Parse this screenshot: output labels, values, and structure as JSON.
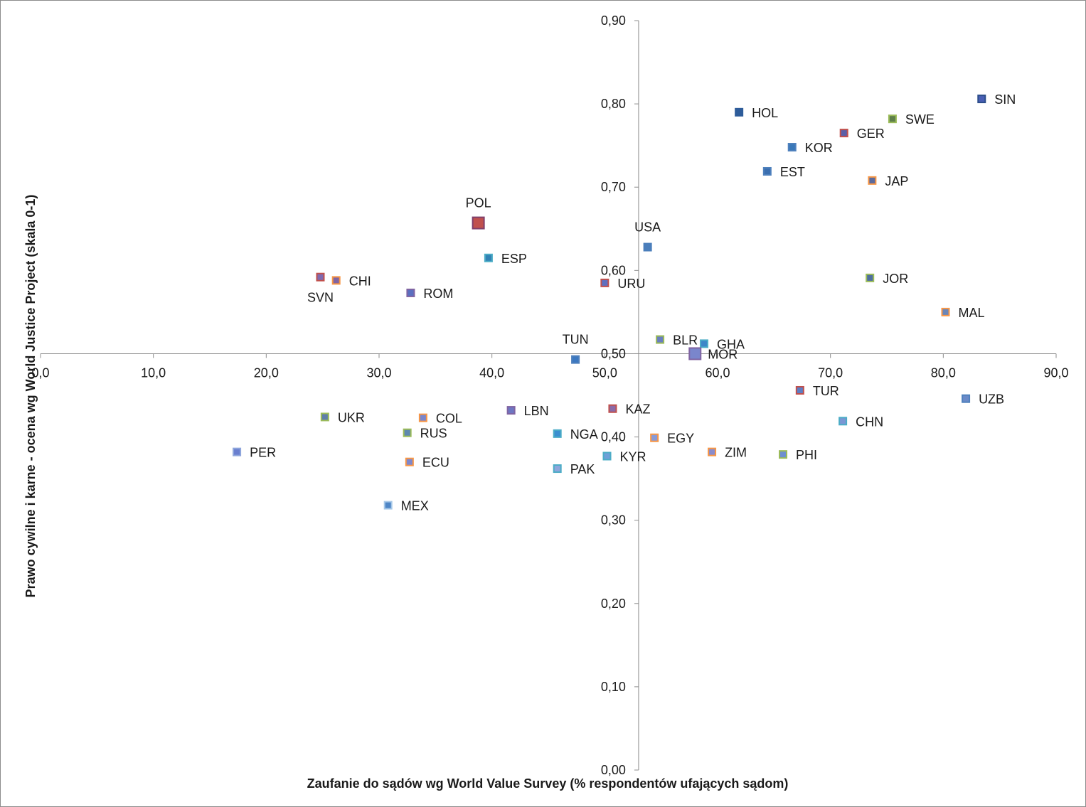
{
  "chart_data": {
    "type": "scatter",
    "xlabel": "Zaufanie do sądów wg World Value Survey (% respondentów ufających sądom)",
    "ylabel": "Prawo cywilne i karne - ocena wg World Justice Project (skala 0-1)",
    "xlim": [
      0,
      90
    ],
    "ylim": [
      0,
      0.9
    ],
    "x_crosses_y_at": 0.5,
    "y_crosses_x_at": 53,
    "grid": false,
    "legend": "none",
    "x_ticks": [
      "0,0",
      "10,0",
      "20,0",
      "30,0",
      "40,0",
      "50,0",
      "60,0",
      "70,0",
      "80,0",
      "90,0"
    ],
    "y_ticks": [
      "0,00",
      "0,10",
      "0,20",
      "0,30",
      "0,40",
      "0,50",
      "0,60",
      "0,70",
      "0,80",
      "0,90"
    ],
    "points": [
      {
        "label": "POL",
        "x": 38.8,
        "y": 0.657,
        "fill": "#c0504d",
        "edge": "#7f3f6b",
        "size": "large",
        "label_pos": "above"
      },
      {
        "label": "SVN",
        "x": 24.8,
        "y": 0.592,
        "fill": "#7f6ab0",
        "edge": "#c0504d",
        "label_pos": "below"
      },
      {
        "label": "CHI",
        "x": 26.2,
        "y": 0.588,
        "fill": "#8064a2",
        "edge": "#f79646",
        "label_pos": "right"
      },
      {
        "label": "ROM",
        "x": 32.8,
        "y": 0.573,
        "fill": "#5b6fc0",
        "edge": "#8064a2",
        "label_pos": "right"
      },
      {
        "label": "ESP",
        "x": 39.7,
        "y": 0.615,
        "fill": "#3282b4",
        "edge": "#4bacc6",
        "label_pos": "right"
      },
      {
        "label": "URU",
        "x": 50.0,
        "y": 0.585,
        "fill": "#5f6fbf",
        "edge": "#c0504d",
        "label_pos": "right"
      },
      {
        "label": "USA",
        "x": 53.8,
        "y": 0.628,
        "fill": "#4a7ebb",
        "edge": "#4a7ebb",
        "label_pos": "above"
      },
      {
        "label": "HOL",
        "x": 61.9,
        "y": 0.79,
        "fill": "#2e5c9a",
        "edge": "#2e5c9a",
        "label_pos": "right"
      },
      {
        "label": "KOR",
        "x": 66.6,
        "y": 0.748,
        "fill": "#3a78b8",
        "edge": "#4f81bd",
        "label_pos": "right"
      },
      {
        "label": "EST",
        "x": 64.4,
        "y": 0.719,
        "fill": "#3b6fb0",
        "edge": "#4f81bd",
        "label_pos": "right"
      },
      {
        "label": "GER",
        "x": 71.2,
        "y": 0.765,
        "fill": "#5b5fa8",
        "edge": "#c0504d",
        "label_pos": "right"
      },
      {
        "label": "SWE",
        "x": 75.5,
        "y": 0.782,
        "fill": "#5e7f4a",
        "edge": "#9bbb59",
        "label_pos": "right"
      },
      {
        "label": "JAP",
        "x": 73.7,
        "y": 0.708,
        "fill": "#5c6a9c",
        "edge": "#f79646",
        "label_pos": "right"
      },
      {
        "label": "SIN",
        "x": 83.4,
        "y": 0.806,
        "fill": "#4a5fb5",
        "edge": "#2c4d8a",
        "label_pos": "right"
      },
      {
        "label": "JOR",
        "x": 73.5,
        "y": 0.591,
        "fill": "#4f6f9f",
        "edge": "#9bbb59",
        "label_pos": "right"
      },
      {
        "label": "MAL",
        "x": 80.2,
        "y": 0.55,
        "fill": "#6b86b8",
        "edge": "#f79646",
        "label_pos": "right"
      },
      {
        "label": "BLR",
        "x": 54.9,
        "y": 0.517,
        "fill": "#6a7fbf",
        "edge": "#9bbb59",
        "label_pos": "right"
      },
      {
        "label": "GHA",
        "x": 58.8,
        "y": 0.512,
        "fill": "#3e86c8",
        "edge": "#4bacc6",
        "label_pos": "right"
      },
      {
        "label": "MOR",
        "x": 58.0,
        "y": 0.5,
        "fill": "#7a86cc",
        "edge": "#8064a2",
        "size": "large",
        "label_pos": "right"
      },
      {
        "label": "TUN",
        "x": 47.4,
        "y": 0.493,
        "fill": "#3c78c0",
        "edge": "#4f81bd",
        "label_pos": "above"
      },
      {
        "label": "TUR",
        "x": 67.3,
        "y": 0.456,
        "fill": "#5d7ec4",
        "edge": "#c0504d",
        "label_pos": "right"
      },
      {
        "label": "UZB",
        "x": 82.0,
        "y": 0.446,
        "fill": "#6a8ac8",
        "edge": "#4f81bd",
        "label_pos": "right"
      },
      {
        "label": "CHN",
        "x": 71.1,
        "y": 0.419,
        "fill": "#7a97d4",
        "edge": "#4bacc6",
        "label_pos": "right"
      },
      {
        "label": "KAZ",
        "x": 50.7,
        "y": 0.434,
        "fill": "#8a6aa8",
        "edge": "#c0504d",
        "label_pos": "right"
      },
      {
        "label": "LBN",
        "x": 41.7,
        "y": 0.432,
        "fill": "#6e76c2",
        "edge": "#8064a2",
        "label_pos": "right"
      },
      {
        "label": "EGY",
        "x": 54.4,
        "y": 0.399,
        "fill": "#8a9ad6",
        "edge": "#f79646",
        "label_pos": "right"
      },
      {
        "label": "ZIM",
        "x": 59.5,
        "y": 0.382,
        "fill": "#8a8ccc",
        "edge": "#f79646",
        "label_pos": "right"
      },
      {
        "label": "PHI",
        "x": 65.8,
        "y": 0.379,
        "fill": "#6e8fd0",
        "edge": "#9bbb59",
        "label_pos": "right"
      },
      {
        "label": "NGA",
        "x": 45.8,
        "y": 0.404,
        "fill": "#3b8fd0",
        "edge": "#4bacc6",
        "label_pos": "right"
      },
      {
        "label": "KYR",
        "x": 50.2,
        "y": 0.377,
        "fill": "#6fa0d8",
        "edge": "#4bacc6",
        "label_pos": "right"
      },
      {
        "label": "PAK",
        "x": 45.8,
        "y": 0.362,
        "fill": "#8ea6dc",
        "edge": "#4bacc6",
        "label_pos": "right"
      },
      {
        "label": "UKR",
        "x": 25.2,
        "y": 0.424,
        "fill": "#5f7fa8",
        "edge": "#9bbb59",
        "label_pos": "right"
      },
      {
        "label": "COL",
        "x": 33.9,
        "y": 0.423,
        "fill": "#7a86cc",
        "edge": "#f79646",
        "label_pos": "right"
      },
      {
        "label": "RUS",
        "x": 32.5,
        "y": 0.405,
        "fill": "#5e88b0",
        "edge": "#9bbb59",
        "label_pos": "right"
      },
      {
        "label": "ECU",
        "x": 32.7,
        "y": 0.37,
        "fill": "#7f88cc",
        "edge": "#f79646",
        "label_pos": "right"
      },
      {
        "label": "PER",
        "x": 17.4,
        "y": 0.382,
        "fill": "#6a7fcf",
        "edge": "#8ea6dc",
        "label_pos": "right"
      },
      {
        "label": "MEX",
        "x": 30.8,
        "y": 0.318,
        "fill": "#4f86c6",
        "edge": "#a6c8e8",
        "label_pos": "right"
      }
    ]
  }
}
